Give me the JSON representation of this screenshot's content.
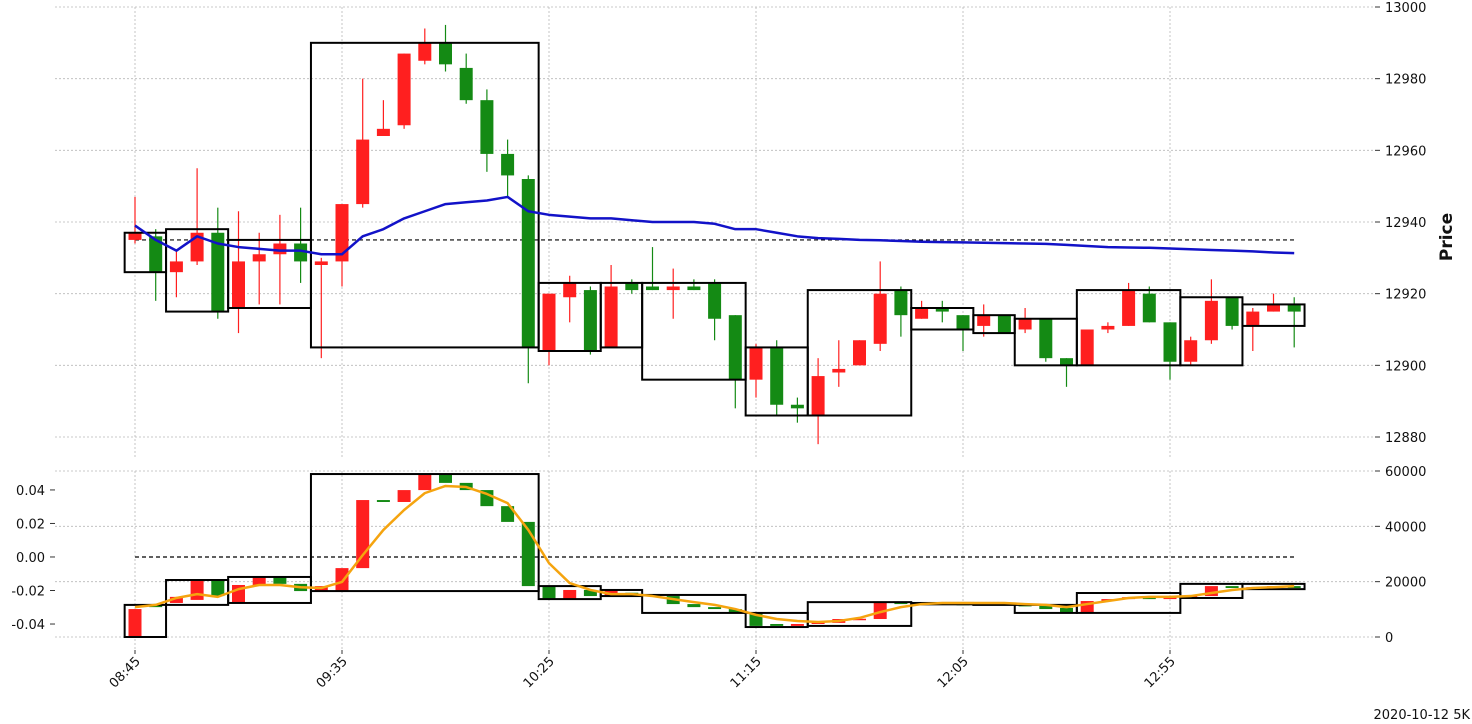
{
  "chart_data": [
    {
      "type": "candlestick",
      "yaxis_side": "right",
      "ylabel": "Price",
      "grid": "y",
      "ylim": [
        12874,
        13000
      ],
      "yticks": [
        12880,
        12900,
        12920,
        12940,
        12960,
        12980,
        13000
      ],
      "up_color": "#ff1f1f",
      "down_color": "#148a14",
      "open": [
        12935,
        12936,
        12926,
        12929,
        12937,
        12916,
        12929,
        12931,
        12934,
        12928,
        12929,
        12945,
        12964,
        12967,
        12985,
        12990,
        12983,
        12974,
        12959,
        12952,
        12904,
        12919,
        12921,
        12905,
        12923,
        12922,
        12921,
        12922,
        12923,
        12914,
        12896,
        12905,
        12889,
        12886,
        12898,
        12900,
        12906,
        12921,
        12913,
        12916,
        12914,
        12911,
        12914,
        12910,
        12913,
        12902,
        12900,
        12910,
        12911,
        12920,
        12912,
        12901,
        12907,
        12919,
        12911,
        12915,
        12917
      ],
      "high": [
        12947,
        12938,
        12932,
        12955,
        12944,
        12943,
        12937,
        12942,
        12944,
        12930,
        12945,
        12980,
        12974,
        12987,
        12994,
        12995,
        12987,
        12977,
        12963,
        12953,
        12920,
        12925,
        12922,
        12928,
        12924,
        12933,
        12927,
        12924,
        12924,
        12914,
        12906,
        12907,
        12891,
        12902,
        12907,
        12907,
        12929,
        12922,
        12918,
        12918,
        12914,
        12917,
        12914,
        12916,
        12913,
        12902,
        12910,
        12912,
        12923,
        12922,
        12912,
        12908,
        12924,
        12919,
        12916,
        12920,
        12919
      ],
      "low": [
        12934,
        12918,
        12919,
        12928,
        12913,
        12909,
        12917,
        12917,
        12923,
        12902,
        12922,
        12944,
        12964,
        12966,
        12984,
        12982,
        12973,
        12954,
        12947,
        12895,
        12900,
        12912,
        12903,
        12905,
        12920,
        12921,
        12913,
        12921,
        12907,
        12888,
        12891,
        12886,
        12884,
        12878,
        12894,
        12900,
        12904,
        12908,
        12913,
        12912,
        12904,
        12908,
        12909,
        12909,
        12901,
        12894,
        12900,
        12909,
        12911,
        12912,
        12896,
        12900,
        12906,
        12910,
        12904,
        12915,
        12905
      ],
      "close": [
        12937,
        12926,
        12929,
        12937,
        12915,
        12929,
        12931,
        12934,
        12929,
        12929,
        12945,
        12963,
        12966,
        12987,
        12990,
        12984,
        12974,
        12959,
        12953,
        12905,
        12920,
        12923,
        12904,
        12922,
        12921,
        12921,
        12922,
        12921,
        12913,
        12896,
        12905,
        12889,
        12888,
        12897,
        12899,
        12907,
        12920,
        12914,
        12916,
        12915,
        12910,
        12914,
        12909,
        12913,
        12902,
        12900,
        12910,
        12911,
        12921,
        12912,
        12901,
        12907,
        12918,
        12911,
        12915,
        12917,
        12915
      ],
      "lines": [
        {
          "color": "#1212c8",
          "values": [
            12939,
            12935,
            12932,
            12936,
            12934,
            12933,
            12932.5,
            12932,
            12932,
            12931,
            12931,
            12936,
            12938,
            12941,
            12943,
            12945,
            12945.5,
            12946,
            12947,
            12943,
            12942,
            12941.5,
            12941,
            12941,
            12940.5,
            12940,
            12940,
            12940,
            12939.5,
            12938,
            12938,
            12937,
            12936,
            12935.5,
            12935.3,
            12935,
            12934.9,
            12934.7,
            12934.5,
            12934.4,
            12934.3,
            12934.2,
            12934.1,
            12934,
            12933.9,
            12933.6,
            12933.3,
            12933,
            12932.9,
            12932.8,
            12932.6,
            12932.4,
            12932.2,
            12932,
            12931.8,
            12931.5,
            12931.3
          ]
        }
      ],
      "hline": {
        "value": 12935
      },
      "boxes": [
        {
          "start": 0,
          "end": 1,
          "high": 12937,
          "low": 12926
        },
        {
          "start": 2,
          "end": 4,
          "high": 12938,
          "low": 12915
        },
        {
          "start": 5,
          "end": 8,
          "high": 12935,
          "low": 12916
        },
        {
          "start": 9,
          "end": 19,
          "high": 12990,
          "low": 12905
        },
        {
          "start": 20,
          "end": 22,
          "high": 12923,
          "low": 12904
        },
        {
          "start": 23,
          "end": 24,
          "high": 12923,
          "low": 12905
        },
        {
          "start": 25,
          "end": 29,
          "high": 12923,
          "low": 12896
        },
        {
          "start": 30,
          "end": 32,
          "high": 12905,
          "low": 12886
        },
        {
          "start": 33,
          "end": 37,
          "high": 12921,
          "low": 12886
        },
        {
          "start": 38,
          "end": 40,
          "high": 12916,
          "low": 12910
        },
        {
          "start": 41,
          "end": 42,
          "high": 12914,
          "low": 12909
        },
        {
          "start": 43,
          "end": 45,
          "high": 12913,
          "low": 12900
        },
        {
          "start": 46,
          "end": 50,
          "high": 12921,
          "low": 12900
        },
        {
          "start": 51,
          "end": 53,
          "high": 12919,
          "low": 12900
        },
        {
          "start": 54,
          "end": 56,
          "high": 12917,
          "low": 12911
        }
      ]
    },
    {
      "type": "candlestick",
      "yaxis_side": "left",
      "grid": "y2",
      "axis": "y2",
      "caption": "2020-10-12 5K",
      "categories": [
        "08:45",
        null,
        null,
        null,
        null,
        null,
        null,
        null,
        null,
        null,
        "09:35",
        null,
        null,
        null,
        null,
        null,
        null,
        null,
        null,
        null,
        "10:25",
        null,
        null,
        null,
        null,
        null,
        null,
        null,
        null,
        null,
        "11:15",
        null,
        null,
        null,
        null,
        null,
        null,
        null,
        null,
        null,
        "12:05",
        null,
        null,
        null,
        null,
        null,
        null,
        null,
        null,
        null,
        "12:55",
        null,
        null,
        null,
        null,
        null,
        null
      ],
      "ylim": [
        -0.0555,
        0.0513
      ],
      "yticks": [
        {
          "value": -0.04,
          "label": "-0.04"
        },
        {
          "value": -0.02,
          "label": "-0.02"
        },
        {
          "value": 0,
          "label": "0.00"
        },
        0.02,
        0.04
      ],
      "y2lim": [
        -4700,
        60000
      ],
      "y2ticks": [
        0,
        20000,
        40000,
        60000
      ],
      "up_color": "#ff1f1f",
      "down_color": "#148a14",
      "open": [
        0,
        11600,
        12300,
        13400,
        20600,
        12600,
        18800,
        21700,
        19200,
        16600,
        16600,
        24900,
        49500,
        48800,
        53100,
        58900,
        55700,
        53100,
        47300,
        41600,
        18400,
        13700,
        17000,
        14800,
        16000,
        15200,
        14800,
        11900,
        10800,
        10100,
        8700,
        4700,
        4000,
        4700,
        5100,
        6500,
        6500,
        12600,
        11900,
        12300,
        12000,
        11800,
        12000,
        11600,
        11300,
        10500,
        8700,
        13000,
        13700,
        14400,
        13700,
        14400,
        14800,
        18400,
        17700,
        18000,
        18400
      ],
      "close": [
        10100,
        10800,
        14500,
        20600,
        14800,
        18800,
        21700,
        19200,
        16600,
        18400,
        24900,
        49500,
        48800,
        53100,
        58900,
        55700,
        53100,
        47300,
        41600,
        18400,
        13700,
        17000,
        14800,
        17000,
        14800,
        14800,
        11900,
        10800,
        10100,
        8700,
        4000,
        4000,
        4700,
        5400,
        6500,
        6600,
        12600,
        11900,
        12300,
        12000,
        11800,
        12000,
        11600,
        11300,
        10100,
        8700,
        13000,
        13700,
        14400,
        13700,
        14400,
        14800,
        18400,
        17700,
        18000,
        18400,
        17700
      ],
      "lines": [
        {
          "color": "#f5a40f",
          "axis": "y2",
          "values": [
            10800,
            11600,
            14100,
            15500,
            14500,
            17300,
            18800,
            18800,
            18000,
            17700,
            19900,
            29600,
            38700,
            45900,
            52000,
            54600,
            54200,
            51700,
            48400,
            38700,
            26700,
            19500,
            17000,
            15500,
            15500,
            14800,
            13700,
            12600,
            11600,
            10100,
            8000,
            6500,
            5800,
            5400,
            5800,
            6900,
            9000,
            10800,
            11900,
            12300,
            12300,
            12300,
            12300,
            11900,
            11600,
            10800,
            11900,
            13000,
            14100,
            14500,
            14500,
            14800,
            15900,
            17000,
            17700,
            18000,
            18400
          ]
        }
      ],
      "hline": {
        "value": 0
      },
      "boxes": [
        {
          "start": 0,
          "end": 1,
          "high": 11600,
          "low": 0
        },
        {
          "start": 2,
          "end": 4,
          "high": 20600,
          "low": 11600
        },
        {
          "start": 5,
          "end": 8,
          "high": 21700,
          "low": 12300
        },
        {
          "start": 9,
          "end": 19,
          "high": 58900,
          "low": 16600
        },
        {
          "start": 20,
          "end": 22,
          "high": 18400,
          "low": 13700
        },
        {
          "start": 23,
          "end": 24,
          "high": 17000,
          "low": 14800
        },
        {
          "start": 25,
          "end": 29,
          "high": 15200,
          "low": 8700
        },
        {
          "start": 30,
          "end": 32,
          "high": 8700,
          "low": 3600
        },
        {
          "start": 33,
          "end": 37,
          "high": 12600,
          "low": 4000
        },
        {
          "start": 38,
          "end": 40,
          "high": 12300,
          "low": 11800
        },
        {
          "start": 41,
          "end": 42,
          "high": 12000,
          "low": 11600
        },
        {
          "start": 43,
          "end": 45,
          "high": 11600,
          "low": 8700
        },
        {
          "start": 46,
          "end": 50,
          "high": 15900,
          "low": 8700
        },
        {
          "start": 51,
          "end": 53,
          "high": 19200,
          "low": 14100
        },
        {
          "start": 54,
          "end": 56,
          "high": 19200,
          "low": 17300
        }
      ]
    }
  ]
}
